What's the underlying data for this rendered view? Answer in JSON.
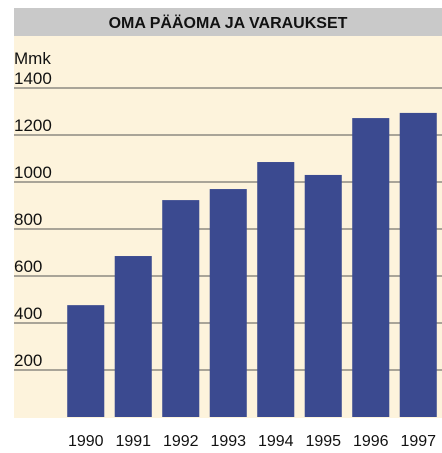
{
  "chart_data": {
    "type": "bar",
    "title": "OMA PÄÄOMA JA VARAUKSET",
    "y_label": "Mmk",
    "categories": [
      "1990",
      "1991",
      "1992",
      "1993",
      "1994",
      "1995",
      "1996",
      "1997"
    ],
    "values": [
      476,
      685,
      923,
      970,
      1085,
      1030,
      1272,
      1294
    ],
    "color": "#3b4a90",
    "ylim": [
      0,
      1400
    ],
    "yticks": [
      200,
      400,
      600,
      800,
      1000,
      1200,
      1400
    ],
    "grid": true
  }
}
